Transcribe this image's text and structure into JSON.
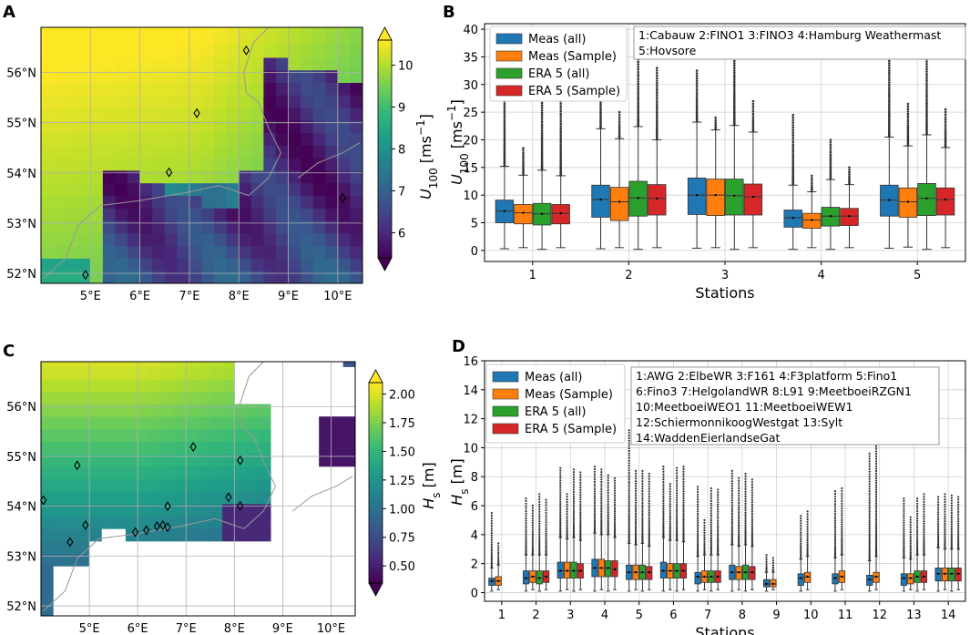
{
  "panel_labels": [
    "A",
    "B",
    "C",
    "D"
  ],
  "colors": {
    "meas_all": "#1f77b4",
    "meas_sample": "#ff7f0e",
    "era_all": "#2ca02c",
    "era_sample": "#d62728",
    "grid": "#b0b0b0",
    "coast": "#999999"
  },
  "chart_data": [
    {
      "id": "A",
      "type": "heatmap",
      "title": "",
      "colorbar_label": "U100 [ms-1]",
      "colorbar_ticks": [
        6,
        7,
        8,
        9,
        10
      ],
      "colorbar_range": [
        5.4,
        10.6
      ],
      "colormap": "viridis",
      "lon_range": [
        4.0,
        10.5
      ],
      "lat_range": [
        51.8,
        56.9
      ],
      "x_ticks": [
        "5°E",
        "6°E",
        "7°E",
        "8°E",
        "9°E",
        "10°E"
      ],
      "y_ticks": [
        "52°N",
        "53°N",
        "54°N",
        "55°N",
        "56°N"
      ],
      "stations": [
        [
          4.9,
          51.97
        ],
        [
          7.15,
          55.19
        ],
        [
          6.59,
          54.01
        ],
        [
          8.15,
          56.44
        ],
        [
          10.1,
          53.5
        ]
      ]
    },
    {
      "id": "B",
      "type": "box",
      "xlabel": "Stations",
      "ylabel": "U100 [ms-1]",
      "ylim": [
        -2,
        41
      ],
      "y_ticks": [
        0,
        5,
        10,
        15,
        20,
        25,
        30,
        35,
        40
      ],
      "categories": [
        "1",
        "2",
        "3",
        "4",
        "5"
      ],
      "station_note_lines": [
        "1:Cabauw  2:FINO1  3:FINO3  4:Hamburg Weathermast",
        "5:Hovsore"
      ],
      "series": [
        {
          "name": "Meas (all)",
          "color_key": "meas_all",
          "boxes": [
            {
              "min": 0.3,
              "q1": 5.0,
              "med": 7.1,
              "q3": 9.1,
              "max": 15.2,
              "flier_top": 31.0
            },
            {
              "min": 0.3,
              "q1": 6.0,
              "med": 9.2,
              "q3": 11.8,
              "max": 22.0,
              "flier_top": 33.0
            },
            {
              "min": 0.4,
              "q1": 6.5,
              "med": 10.0,
              "q3": 13.1,
              "max": 23.2,
              "flier_top": 32.5
            },
            {
              "min": 0.2,
              "q1": 4.2,
              "med": 5.9,
              "q3": 7.3,
              "max": 11.8,
              "flier_top": 24.5
            },
            {
              "min": 0.4,
              "q1": 6.2,
              "med": 9.1,
              "q3": 11.8,
              "max": 20.5,
              "flier_top": 37.0
            }
          ]
        },
        {
          "name": "Meas (Sample)",
          "color_key": "meas_sample",
          "boxes": [
            {
              "min": 0.5,
              "q1": 4.8,
              "med": 6.8,
              "q3": 8.3,
              "max": 13.6,
              "flier_top": 18.5
            },
            {
              "min": 0.5,
              "q1": 5.4,
              "med": 8.8,
              "q3": 11.4,
              "max": 20.2,
              "flier_top": 25.0
            },
            {
              "min": 0.5,
              "q1": 6.3,
              "med": 10.0,
              "q3": 12.9,
              "max": 21.8,
              "flier_top": 24.0
            },
            {
              "min": 0.5,
              "q1": 4.0,
              "med": 5.5,
              "q3": 6.7,
              "max": 10.6,
              "flier_top": 13.5
            },
            {
              "min": 0.6,
              "q1": 6.0,
              "med": 8.8,
              "q3": 11.3,
              "max": 18.9,
              "flier_top": 26.5
            }
          ]
        },
        {
          "name": "ERA 5 (all)",
          "color_key": "era_all",
          "boxes": [
            {
              "min": 0.2,
              "q1": 4.6,
              "med": 6.6,
              "q3": 8.5,
              "max": 14.5,
              "flier_top": 29.0
            },
            {
              "min": 0.2,
              "q1": 6.2,
              "med": 9.5,
              "q3": 12.5,
              "max": 22.4,
              "flier_top": 35.0
            },
            {
              "min": 0.2,
              "q1": 6.4,
              "med": 9.9,
              "q3": 12.9,
              "max": 22.6,
              "flier_top": 37.0
            },
            {
              "min": 0.2,
              "q1": 4.4,
              "med": 6.2,
              "q3": 7.8,
              "max": 12.8,
              "flier_top": 20.0
            },
            {
              "min": 0.2,
              "q1": 6.3,
              "med": 9.4,
              "q3": 12.1,
              "max": 20.9,
              "flier_top": 36.0
            }
          ]
        },
        {
          "name": "ERA 5 (Sample)",
          "color_key": "era_sample",
          "boxes": [
            {
              "min": 0.5,
              "q1": 4.8,
              "med": 6.7,
              "q3": 8.3,
              "max": 13.5,
              "flier_top": 27.0
            },
            {
              "min": 0.5,
              "q1": 6.4,
              "med": 9.4,
              "q3": 11.9,
              "max": 20.0,
              "flier_top": 33.0
            },
            {
              "min": 0.5,
              "q1": 6.4,
              "med": 9.7,
              "q3": 12.0,
              "max": 21.4,
              "flier_top": 27.0
            },
            {
              "min": 0.5,
              "q1": 4.5,
              "med": 6.2,
              "q3": 7.6,
              "max": 11.9,
              "flier_top": 15.0
            },
            {
              "min": 0.5,
              "q1": 6.4,
              "med": 9.2,
              "q3": 11.3,
              "max": 18.6,
              "flier_top": 25.5
            }
          ]
        }
      ]
    },
    {
      "id": "C",
      "type": "heatmap",
      "title": "",
      "colorbar_label": "Hs [m]",
      "colorbar_ticks": [
        0.5,
        0.75,
        1.0,
        1.25,
        1.5,
        1.75,
        2.0
      ],
      "colorbar_tick_labels": [
        "0.50",
        "0.75",
        "1.00",
        "1.25",
        "1.50",
        "1.75",
        "2.00"
      ],
      "colorbar_range": [
        0.35,
        2.1
      ],
      "colormap": "viridis",
      "lon_range": [
        4.0,
        10.5
      ],
      "lat_range": [
        51.8,
        56.9
      ],
      "x_ticks": [
        "5°E",
        "6°E",
        "7°E",
        "8°E",
        "9°E",
        "10°E"
      ],
      "y_ticks": [
        "52°N",
        "53°N",
        "54°N",
        "55°N",
        "56°N"
      ],
      "stations": [
        [
          4.05,
          54.12
        ],
        [
          4.75,
          54.82
        ],
        [
          4.92,
          53.62
        ],
        [
          4.6,
          53.28
        ],
        [
          5.95,
          53.48
        ],
        [
          6.18,
          53.52
        ],
        [
          6.4,
          53.6
        ],
        [
          6.52,
          53.62
        ],
        [
          6.62,
          53.58
        ],
        [
          6.62,
          54.0
        ],
        [
          7.15,
          55.19
        ],
        [
          7.88,
          54.18
        ],
        [
          8.12,
          54.01
        ],
        [
          8.12,
          54.92
        ]
      ]
    },
    {
      "id": "D",
      "type": "box",
      "xlabel": "Stations",
      "ylabel": "Hs [m]",
      "ylim": [
        -0.6,
        16
      ],
      "y_ticks": [
        0,
        2,
        4,
        6,
        8,
        10,
        12,
        14,
        16
      ],
      "categories": [
        "1",
        "2",
        "3",
        "4",
        "5",
        "6",
        "7",
        "8",
        "9",
        "10",
        "11",
        "12",
        "13",
        "14"
      ],
      "station_note_lines": [
        "1:AWG  2:ElbeWR  3:F161  4:F3platform  5:Fino1",
        "6:Fino3  7:HelgolandWR  8:L91  9:MeetboeiRZGN1",
        "10:MeetboeiWEO1  11:MeetboeiWEW1",
        "12:SchiermonnikoogWestgat  13:Sylt",
        "14:WaddenEierlandseGat"
      ],
      "series": [
        {
          "name": "Meas (all)",
          "color_key": "meas_all",
          "boxes": [
            {
              "min": 0.1,
              "q1": 0.5,
              "med": 0.8,
              "q3": 1.0,
              "max": 1.7,
              "flier_top": 5.5
            },
            {
              "min": 0.1,
              "q1": 0.6,
              "med": 1.0,
              "q3": 1.5,
              "max": 2.6,
              "flier_top": 6.5
            },
            {
              "min": 0.1,
              "q1": 1.0,
              "med": 1.5,
              "q3": 2.1,
              "max": 3.8,
              "flier_top": 8.6
            },
            {
              "min": 0.1,
              "q1": 1.1,
              "med": 1.7,
              "q3": 2.3,
              "max": 4.1,
              "flier_top": 8.7
            },
            {
              "min": 0.1,
              "q1": 0.9,
              "med": 1.4,
              "q3": 1.9,
              "max": 3.4,
              "flier_top": 11.2
            },
            {
              "min": 0.1,
              "q1": 1.0,
              "med": 1.5,
              "q3": 2.1,
              "max": 3.8,
              "flier_top": 8.7
            },
            {
              "min": 0.1,
              "q1": 0.6,
              "med": 1.1,
              "q3": 1.4,
              "max": 2.5,
              "flier_top": 7.3
            },
            {
              "min": 0.1,
              "q1": 0.9,
              "med": 1.4,
              "q3": 1.9,
              "max": 3.3,
              "flier_top": 8.4
            },
            {
              "min": 0.1,
              "q1": 0.4,
              "med": 0.6,
              "q3": 0.9,
              "max": 1.4,
              "flier_top": 2.6
            },
            {
              "min": 0.1,
              "q1": 0.5,
              "med": 1.0,
              "q3": 1.3,
              "max": 2.3,
              "flier_top": 5.3
            },
            {
              "min": 0.1,
              "q1": 0.6,
              "med": 1.0,
              "q3": 1.3,
              "max": 2.4,
              "flier_top": 7.0
            },
            {
              "min": 0.1,
              "q1": 0.5,
              "med": 0.9,
              "q3": 1.2,
              "max": 2.2,
              "flier_top": 9.6
            },
            {
              "min": 0.1,
              "q1": 0.5,
              "med": 1.0,
              "q3": 1.3,
              "max": 2.4,
              "flier_top": 6.5
            },
            {
              "min": 0.1,
              "q1": 0.8,
              "med": 1.3,
              "q3": 1.7,
              "max": 3.1,
              "flier_top": 6.6
            }
          ]
        },
        {
          "name": "Meas (Sample)",
          "color_key": "meas_sample",
          "boxes": [
            {
              "min": 0.2,
              "q1": 0.5,
              "med": 0.8,
              "q3": 1.1,
              "max": 1.9,
              "flier_top": 3.4
            },
            {
              "min": 0.2,
              "q1": 0.7,
              "med": 1.1,
              "q3": 1.5,
              "max": 2.6,
              "flier_top": 6.0
            },
            {
              "min": 0.2,
              "q1": 1.0,
              "med": 1.5,
              "q3": 2.1,
              "max": 3.7,
              "flier_top": 6.8
            },
            {
              "min": 0.2,
              "q1": 1.1,
              "med": 1.7,
              "q3": 2.3,
              "max": 4.0,
              "flier_top": 8.5
            },
            {
              "min": 0.2,
              "q1": 0.9,
              "med": 1.4,
              "q3": 1.9,
              "max": 3.3,
              "flier_top": 8.4
            },
            {
              "min": 0.2,
              "q1": 1.0,
              "med": 1.5,
              "q3": 2.0,
              "max": 3.6,
              "flier_top": 7.5
            },
            {
              "min": 0.2,
              "q1": 0.7,
              "med": 1.1,
              "q3": 1.5,
              "max": 2.6,
              "flier_top": 5.0
            },
            {
              "min": 0.2,
              "q1": 0.9,
              "med": 1.4,
              "q3": 1.8,
              "max": 3.2,
              "flier_top": 7.9
            },
            {
              "min": 0.2,
              "q1": 0.4,
              "med": 0.6,
              "q3": 0.9,
              "max": 1.4,
              "flier_top": 2.4
            },
            {
              "min": 0.2,
              "q1": 0.7,
              "med": 1.1,
              "q3": 1.4,
              "max": 2.5,
              "flier_top": 5.6
            },
            {
              "min": 0.2,
              "q1": 0.7,
              "med": 1.1,
              "q3": 1.5,
              "max": 2.6,
              "flier_top": 7.2
            },
            {
              "min": 0.2,
              "q1": 0.7,
              "med": 1.1,
              "q3": 1.4,
              "max": 2.5,
              "flier_top": 11.0
            },
            {
              "min": 0.2,
              "q1": 0.6,
              "med": 1.0,
              "q3": 1.3,
              "max": 2.3,
              "flier_top": 5.2
            },
            {
              "min": 0.2,
              "q1": 0.8,
              "med": 1.3,
              "q3": 1.7,
              "max": 3.0,
              "flier_top": 6.8
            }
          ]
        },
        {
          "name": "ERA 5 (all)",
          "color_key": "era_all",
          "boxes": [
            {
              "min": null,
              "q1": null,
              "med": null,
              "q3": null,
              "max": null,
              "flier_top": null
            },
            {
              "min": 0.1,
              "q1": 0.6,
              "med": 1.0,
              "q3": 1.5,
              "max": 2.6,
              "flier_top": 6.8
            },
            {
              "min": 0.1,
              "q1": 1.0,
              "med": 1.5,
              "q3": 2.1,
              "max": 3.8,
              "flier_top": 8.5
            },
            {
              "min": 0.1,
              "q1": 1.1,
              "med": 1.7,
              "q3": 2.2,
              "max": 4.0,
              "flier_top": 8.1
            },
            {
              "min": 0.1,
              "q1": 0.9,
              "med": 1.4,
              "q3": 1.9,
              "max": 3.4,
              "flier_top": 8.4
            },
            {
              "min": 0.1,
              "q1": 1.0,
              "med": 1.5,
              "q3": 2.0,
              "max": 3.6,
              "flier_top": 8.6
            },
            {
              "min": 0.1,
              "q1": 0.7,
              "med": 1.1,
              "q3": 1.5,
              "max": 2.6,
              "flier_top": 7.2
            },
            {
              "min": 0.1,
              "q1": 0.9,
              "med": 1.4,
              "q3": 1.9,
              "max": 3.3,
              "flier_top": 8.2
            },
            {
              "min": null,
              "q1": null,
              "med": null,
              "q3": null,
              "max": null,
              "flier_top": null
            },
            {
              "min": null,
              "q1": null,
              "med": null,
              "q3": null,
              "max": null,
              "flier_top": null
            },
            {
              "min": null,
              "q1": null,
              "med": null,
              "q3": null,
              "max": null,
              "flier_top": null
            },
            {
              "min": null,
              "q1": null,
              "med": null,
              "q3": null,
              "max": null,
              "flier_top": null
            },
            {
              "min": 0.1,
              "q1": 0.7,
              "med": 1.1,
              "q3": 1.5,
              "max": 2.6,
              "flier_top": 6.5
            },
            {
              "min": 0.1,
              "q1": 0.8,
              "med": 1.3,
              "q3": 1.7,
              "max": 3.0,
              "flier_top": 6.7
            }
          ]
        },
        {
          "name": "ERA 5 (Sample)",
          "color_key": "era_sample",
          "boxes": [
            {
              "min": null,
              "q1": null,
              "med": null,
              "q3": null,
              "max": null,
              "flier_top": null
            },
            {
              "min": 0.2,
              "q1": 0.7,
              "med": 1.1,
              "q3": 1.5,
              "max": 2.6,
              "flier_top": 6.4
            },
            {
              "min": 0.2,
              "q1": 1.0,
              "med": 1.5,
              "q3": 2.0,
              "max": 3.6,
              "flier_top": 8.3
            },
            {
              "min": 0.2,
              "q1": 1.1,
              "med": 1.6,
              "q3": 2.2,
              "max": 3.8,
              "flier_top": 7.9
            },
            {
              "min": 0.2,
              "q1": 0.9,
              "med": 1.4,
              "q3": 1.8,
              "max": 3.2,
              "flier_top": 8.2
            },
            {
              "min": 0.2,
              "q1": 1.0,
              "med": 1.5,
              "q3": 2.0,
              "max": 3.5,
              "flier_top": 8.7
            },
            {
              "min": 0.2,
              "q1": 0.7,
              "med": 1.1,
              "q3": 1.5,
              "max": 2.6,
              "flier_top": 7.1
            },
            {
              "min": 0.2,
              "q1": 0.9,
              "med": 1.4,
              "q3": 1.8,
              "max": 3.2,
              "flier_top": 7.8
            },
            {
              "min": null,
              "q1": null,
              "med": null,
              "q3": null,
              "max": null,
              "flier_top": null
            },
            {
              "min": null,
              "q1": null,
              "med": null,
              "q3": null,
              "max": null,
              "flier_top": null
            },
            {
              "min": null,
              "q1": null,
              "med": null,
              "q3": null,
              "max": null,
              "flier_top": null
            },
            {
              "min": null,
              "q1": null,
              "med": null,
              "q3": null,
              "max": null,
              "flier_top": null
            },
            {
              "min": 0.2,
              "q1": 0.7,
              "med": 1.1,
              "q3": 1.5,
              "max": 2.6,
              "flier_top": 6.8
            },
            {
              "min": 0.2,
              "q1": 0.8,
              "med": 1.3,
              "q3": 1.7,
              "max": 3.0,
              "flier_top": 6.6
            }
          ]
        }
      ]
    }
  ]
}
